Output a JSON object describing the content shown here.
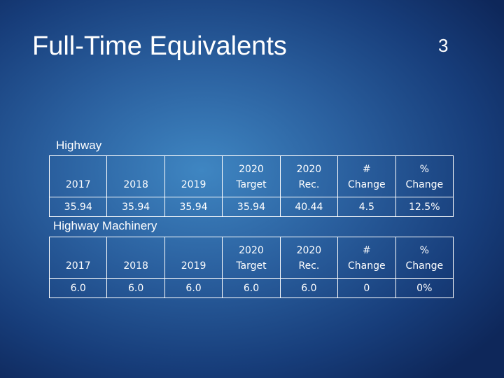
{
  "header": {
    "title": "Full-Time Equivalents",
    "page_number": "3"
  },
  "sections": [
    {
      "label": "Highway",
      "table": {
        "header": [
          "2017",
          "2018",
          "2019",
          "2020 Target",
          "2020 Rec.",
          "# Change",
          "% Change"
        ],
        "rows": [
          [
            "35.94",
            "35.94",
            "35.94",
            "35.94",
            "40.44",
            "4.5",
            "12.5%"
          ]
        ]
      }
    },
    {
      "label": "Highway Machinery",
      "table": {
        "header": [
          "2017",
          "2018",
          "2019",
          "2020 Target",
          "2020 Rec.",
          "# Change",
          "% Change"
        ],
        "rows": [
          [
            "6.0",
            "6.0",
            "6.0",
            "6.0",
            "6.0",
            "0",
            "0%"
          ]
        ]
      }
    }
  ]
}
